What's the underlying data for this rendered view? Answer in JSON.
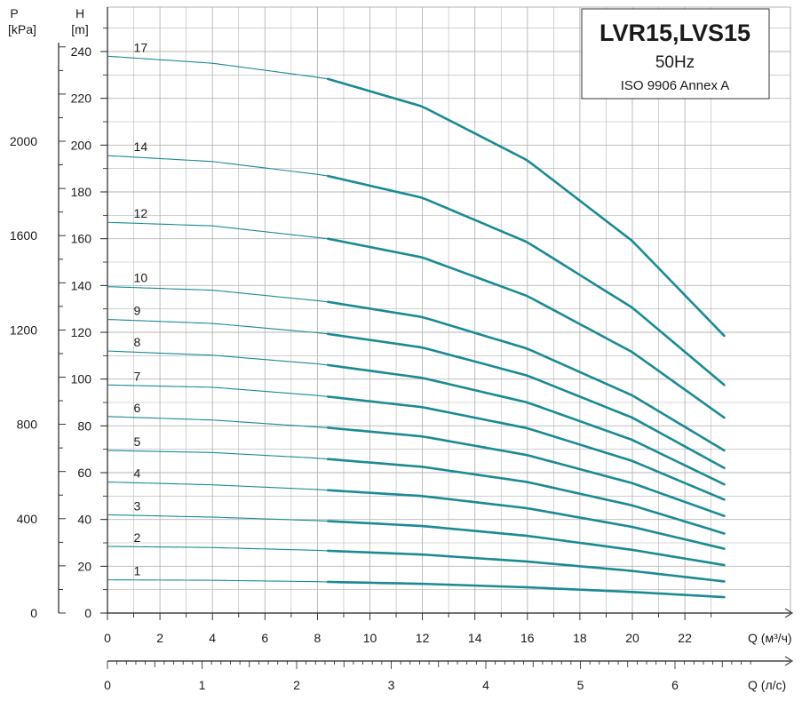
{
  "chart_data": {
    "type": "line",
    "title": "LVR15,LVS15",
    "subtitle": "50Hz",
    "standard": "ISO 9906 Annex A",
    "y_head": {
      "label": "H",
      "unit": "[m]",
      "min": 0,
      "max": 250,
      "ticks": [
        0,
        20,
        40,
        60,
        80,
        100,
        120,
        140,
        160,
        180,
        200,
        220,
        240
      ]
    },
    "y_pressure": {
      "label": "P",
      "unit": "[kPa]",
      "ticks": [
        0,
        400,
        800,
        1200,
        1600,
        2000
      ]
    },
    "x_flow_m3h": {
      "label": "Q (м³/ч)",
      "min": 0,
      "max": 23.5,
      "ticks": [
        0,
        2,
        4,
        6,
        8,
        10,
        12,
        14,
        16,
        18,
        20,
        22
      ]
    },
    "x_flow_ls": {
      "label": "Q (л/с)",
      "ticks": [
        0,
        1,
        2,
        3,
        4,
        5,
        6
      ]
    },
    "operating_range_m3h": [
      8.4,
      23.5
    ],
    "curve_color": "#1a8a94",
    "grid": true,
    "series": [
      {
        "name": "1",
        "points": [
          [
            0,
            14.2
          ],
          [
            4,
            14.0
          ],
          [
            8,
            13.4
          ],
          [
            8.4,
            13.3
          ],
          [
            12,
            12.5
          ],
          [
            16,
            11.0
          ],
          [
            20,
            9.0
          ],
          [
            23.5,
            6.8
          ]
        ]
      },
      {
        "name": "2",
        "points": [
          [
            0,
            28.5
          ],
          [
            4,
            28.0
          ],
          [
            8,
            26.8
          ],
          [
            8.4,
            26.6
          ],
          [
            12,
            25.0
          ],
          [
            16,
            22.0
          ],
          [
            20,
            18.0
          ],
          [
            23.5,
            13.5
          ]
        ]
      },
      {
        "name": "3",
        "points": [
          [
            0,
            42.0
          ],
          [
            4,
            41.0
          ],
          [
            8,
            39.5
          ],
          [
            8.4,
            39.3
          ],
          [
            12,
            37.2
          ],
          [
            16,
            33.0
          ],
          [
            20,
            27.0
          ],
          [
            23.5,
            20.5
          ]
        ]
      },
      {
        "name": "4",
        "points": [
          [
            0,
            56.0
          ],
          [
            4,
            54.8
          ],
          [
            8,
            52.8
          ],
          [
            8.4,
            52.5
          ],
          [
            12,
            50.0
          ],
          [
            16,
            44.8
          ],
          [
            20,
            36.8
          ],
          [
            23.5,
            27.5
          ]
        ]
      },
      {
        "name": "5",
        "points": [
          [
            0,
            69.5
          ],
          [
            4,
            68.6
          ],
          [
            8,
            66.2
          ],
          [
            8.4,
            65.8
          ],
          [
            12,
            62.5
          ],
          [
            16,
            56.0
          ],
          [
            20,
            46.0
          ],
          [
            23.5,
            34.0
          ]
        ]
      },
      {
        "name": "6",
        "points": [
          [
            0,
            84.0
          ],
          [
            4,
            82.5
          ],
          [
            8,
            79.5
          ],
          [
            8.4,
            79.2
          ],
          [
            12,
            75.5
          ],
          [
            16,
            67.5
          ],
          [
            20,
            55.5
          ],
          [
            23.5,
            41.5
          ]
        ]
      },
      {
        "name": "7",
        "points": [
          [
            0,
            97.5
          ],
          [
            4,
            96.5
          ],
          [
            8,
            93.0
          ],
          [
            8.4,
            92.5
          ],
          [
            12,
            88.0
          ],
          [
            16,
            79.0
          ],
          [
            20,
            65.0
          ],
          [
            23.5,
            48.5
          ]
        ]
      },
      {
        "name": "8",
        "points": [
          [
            0,
            112.0
          ],
          [
            4,
            110.2
          ],
          [
            8,
            106.5
          ],
          [
            8.4,
            106.0
          ],
          [
            12,
            100.5
          ],
          [
            16,
            90.0
          ],
          [
            20,
            74.0
          ],
          [
            23.5,
            55.0
          ]
        ]
      },
      {
        "name": "9",
        "points": [
          [
            0,
            125.5
          ],
          [
            4,
            123.8
          ],
          [
            8,
            119.8
          ],
          [
            8.4,
            119.3
          ],
          [
            12,
            113.5
          ],
          [
            16,
            101.5
          ],
          [
            20,
            83.5
          ],
          [
            23.5,
            62.0
          ]
        ]
      },
      {
        "name": "10",
        "points": [
          [
            0,
            139.5
          ],
          [
            4,
            138.0
          ],
          [
            8,
            133.5
          ],
          [
            8.4,
            133.0
          ],
          [
            12,
            126.5
          ],
          [
            16,
            113.0
          ],
          [
            20,
            93.0
          ],
          [
            23.5,
            69.5
          ]
        ]
      },
      {
        "name": "12",
        "points": [
          [
            0,
            167.0
          ],
          [
            4,
            165.5
          ],
          [
            8,
            160.5
          ],
          [
            8.4,
            160.0
          ],
          [
            12,
            152.0
          ],
          [
            16,
            135.5
          ],
          [
            20,
            111.5
          ],
          [
            23.5,
            83.5
          ]
        ]
      },
      {
        "name": "14",
        "points": [
          [
            0,
            195.5
          ],
          [
            4,
            193.0
          ],
          [
            8,
            187.5
          ],
          [
            8.4,
            186.8
          ],
          [
            12,
            177.5
          ],
          [
            16,
            158.5
          ],
          [
            20,
            130.5
          ],
          [
            23.5,
            97.5
          ]
        ]
      },
      {
        "name": "17",
        "points": [
          [
            0,
            238.0
          ],
          [
            4,
            235.0
          ],
          [
            8,
            229.0
          ],
          [
            8.4,
            228.3
          ],
          [
            12,
            216.5
          ],
          [
            16,
            193.5
          ],
          [
            20,
            159.0
          ],
          [
            23.5,
            118.5
          ]
        ]
      }
    ]
  }
}
